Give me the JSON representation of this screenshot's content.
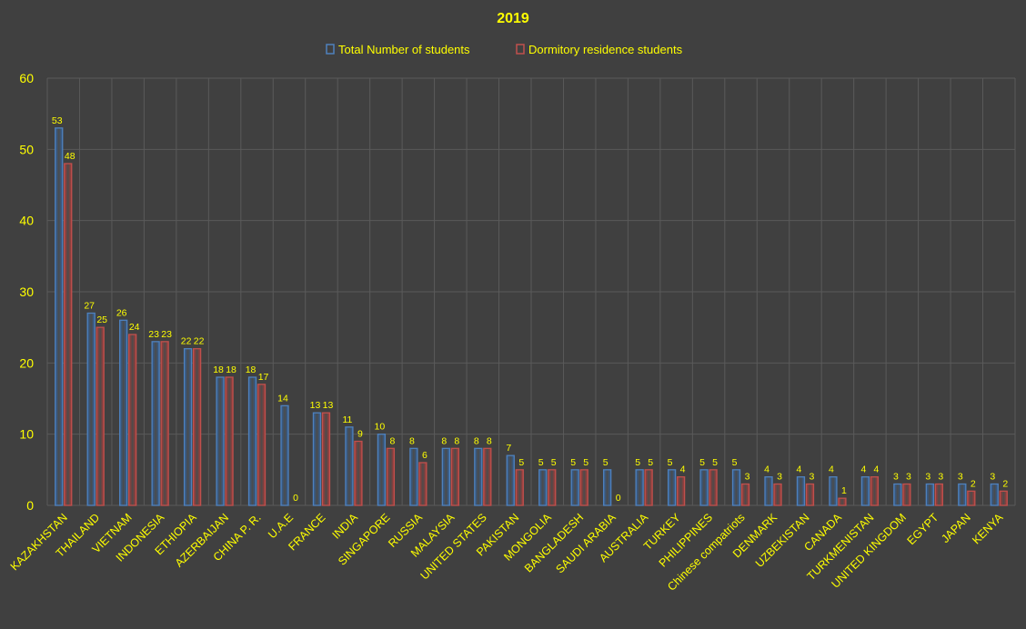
{
  "chart_data": {
    "type": "bar",
    "title": "2019",
    "legend_position": "top",
    "grid": true,
    "ylim": [
      0,
      60
    ],
    "yticks": [
      0,
      10,
      20,
      30,
      40,
      50,
      60
    ],
    "xlabel": "",
    "ylabel": "",
    "colors": {
      "background": "#404040",
      "text": "#ffff00",
      "gridline": "#5a5a5a"
    },
    "categories": [
      "KAZAKHSTAN",
      "THAILAND",
      "VIETNAM",
      "INDONESIA",
      "ETHIOPIA",
      "AZERBAIJAN",
      "CHINA P. R.",
      "U.A.E",
      "FRANCE",
      "INDIA",
      "SINGAPORE",
      "RUSSIA",
      "MALAYSIA",
      "UNITED STATES",
      "PAKISTAN",
      "MONGOLIA",
      "BANGLADESH",
      "SAUDI ARABIA",
      "AUSTRALIA",
      "TURKEY",
      "PHILIPPINES",
      "Chinese compatriots",
      "DENMARK",
      "UZBEKISTAN",
      "CANADA",
      "TURKMENISTAN",
      "UNITED KINGDOM",
      "EGYPT",
      "JAPAN",
      "KENYA"
    ],
    "series": [
      {
        "name": "Total Number of students",
        "color": "#4f81bd",
        "values": [
          53,
          27,
          26,
          23,
          22,
          18,
          18,
          14,
          13,
          11,
          10,
          8,
          8,
          8,
          7,
          5,
          5,
          5,
          5,
          5,
          5,
          5,
          4,
          4,
          4,
          4,
          3,
          3,
          3,
          3
        ]
      },
      {
        "name": "Dormitory residence students",
        "color": "#c0504d",
        "values": [
          48,
          25,
          24,
          23,
          22,
          18,
          17,
          0,
          13,
          9,
          8,
          6,
          8,
          8,
          5,
          5,
          5,
          0,
          5,
          4,
          5,
          3,
          3,
          3,
          1,
          4,
          3,
          3,
          2,
          2
        ]
      }
    ]
  }
}
